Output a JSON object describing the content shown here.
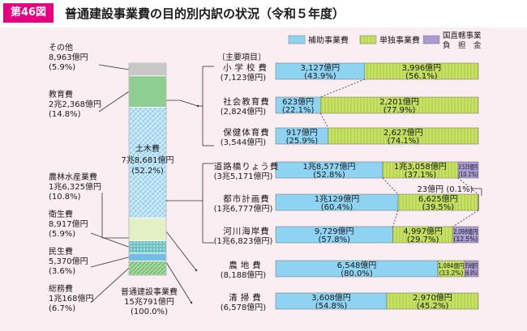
{
  "header": {
    "badge": "第46図",
    "title": "普通建設事業費の目的別内訳の状況（令和５年度）"
  },
  "legend": [
    {
      "name": "補助事業費",
      "color": "#8fd3f3"
    },
    {
      "name": "単独事業費",
      "color": "#c9e36a"
    },
    {
      "name": "国直轄事業負担金",
      "label_lines": [
        "国直轄事業",
        "負　担　金"
      ],
      "color": "#b6a9d8"
    }
  ],
  "chart_data": [
    {
      "type": "bar",
      "stacked": true,
      "orientation": "vertical",
      "total_label": [
        "普通建設事業費",
        "15兆791億円",
        "(100.0%)"
      ],
      "segments": [
        {
          "name": "総務費",
          "value_text": "1兆168億円",
          "percent_text": "(6.7%)",
          "percent": 6.7,
          "color": "#9ad39b"
        },
        {
          "name": "民生費",
          "value_text": "5,370億円",
          "percent_text": "(3.6%)",
          "percent": 3.6,
          "color": "#8cc7e8"
        },
        {
          "name": "衛生費",
          "value_text": "8,917億円",
          "percent_text": "(5.9%)",
          "percent": 5.9,
          "color": "#7ec8c8"
        },
        {
          "name": "農林水産業費",
          "value_text": "1兆6,325億円",
          "percent_text": "(10.8%)",
          "percent": 10.8,
          "color": "#e2f0c4"
        },
        {
          "name": "土木費",
          "value_text": "7兆8,681億円",
          "percent_text": "(52.2%)",
          "percent": 52.2,
          "color": "#bfe3f6"
        },
        {
          "name": "教育費",
          "value_text": "2兆2,368億円",
          "percent_text": "(14.8%)",
          "percent": 14.8,
          "color": "#8fce91"
        },
        {
          "name": "その他",
          "value_text": "8,963億円",
          "percent_text": "(5.9%)",
          "percent": 5.9,
          "color": "#c8c8c8"
        }
      ]
    },
    {
      "type": "bar",
      "stacked": true,
      "orientation": "horizontal",
      "group_label": "〔主要項目〕",
      "series": [
        "補助事業費",
        "単独事業費",
        "国直轄事業負担金"
      ],
      "rows": [
        {
          "name": "小学校費",
          "total": "(7,123億円)",
          "segments": [
            {
              "series": "補助事業費",
              "value": "3,127億円",
              "percent": 43.9,
              "pct_text": "(43.9%)"
            },
            {
              "series": "単独事業費",
              "value": "3,996億円",
              "percent": 56.1,
              "pct_text": "(56.1%)"
            }
          ]
        },
        {
          "name": "社会教育費",
          "total": "(2,824億円)",
          "segments": [
            {
              "series": "補助事業費",
              "value": "623億円",
              "percent": 22.1,
              "pct_text": "(22.1%)"
            },
            {
              "series": "単独事業費",
              "value": "2,201億円",
              "percent": 77.9,
              "pct_text": "(77.9%)"
            }
          ]
        },
        {
          "name": "保健体育費",
          "total": "(3,544億円)",
          "segments": [
            {
              "series": "補助事業費",
              "value": "917億円",
              "percent": 25.9,
              "pct_text": "(25.9%)"
            },
            {
              "series": "単独事業費",
              "value": "2,627億円",
              "percent": 74.1,
              "pct_text": "(74.1%)"
            }
          ]
        },
        {
          "name": "道路橋りょう費",
          "total": "(3兆5,171億円)",
          "segments": [
            {
              "series": "補助事業費",
              "value": "1兆8,577億円",
              "percent": 52.8,
              "pct_text": "(52.8%)"
            },
            {
              "series": "単独事業費",
              "value": "1兆3,058億円",
              "percent": 37.1,
              "pct_text": "(37.1%)"
            },
            {
              "series": "国直轄事業負担金",
              "value": "3,535億円",
              "percent": 10.1,
              "pct_text": "(10.1%)"
            }
          ]
        },
        {
          "name": "都市計画費",
          "total": "(1兆6,777億円)",
          "callout": "23億円 (0.1%)",
          "segments": [
            {
              "series": "補助事業費",
              "value": "1兆129億円",
              "percent": 60.4,
              "pct_text": "(60.4%)"
            },
            {
              "series": "単独事業費",
              "value": "6,625億円",
              "percent": 39.5,
              "pct_text": "(39.5%)"
            },
            {
              "series": "国直轄事業負担金",
              "value": "23億円",
              "percent": 0.1,
              "pct_text": "(0.1%)"
            }
          ]
        },
        {
          "name": "河川海岸費",
          "total": "(1兆6,823億円)",
          "segments": [
            {
              "series": "補助事業費",
              "value": "9,729億円",
              "percent": 57.8,
              "pct_text": "(57.8%)"
            },
            {
              "series": "単独事業費",
              "value": "4,997億円",
              "percent": 29.7,
              "pct_text": "(29.7%)"
            },
            {
              "series": "国直轄事業負担金",
              "value": "2,098億円",
              "percent": 12.5,
              "pct_text": "(12.5%)"
            }
          ]
        },
        {
          "name": "農地費",
          "total": "(8,188億円)",
          "segments": [
            {
              "series": "補助事業費",
              "value": "6,548億円",
              "percent": 80.0,
              "pct_text": "(80.0%)"
            },
            {
              "series": "単独事業費",
              "value": "1,084億円",
              "percent": 13.2,
              "pct_text": "(13.2%)"
            },
            {
              "series": "国直轄事業負担金",
              "value": "556億円",
              "percent": 6.8,
              "pct_text": "(6.8%)"
            }
          ]
        },
        {
          "name": "清掃費",
          "total": "(6,578億円)",
          "segments": [
            {
              "series": "補助事業費",
              "value": "3,608億円",
              "percent": 54.8,
              "pct_text": "(54.8%)"
            },
            {
              "series": "単独事業費",
              "value": "2,970億円",
              "percent": 45.2,
              "pct_text": "(45.2%)"
            }
          ]
        }
      ]
    }
  ]
}
